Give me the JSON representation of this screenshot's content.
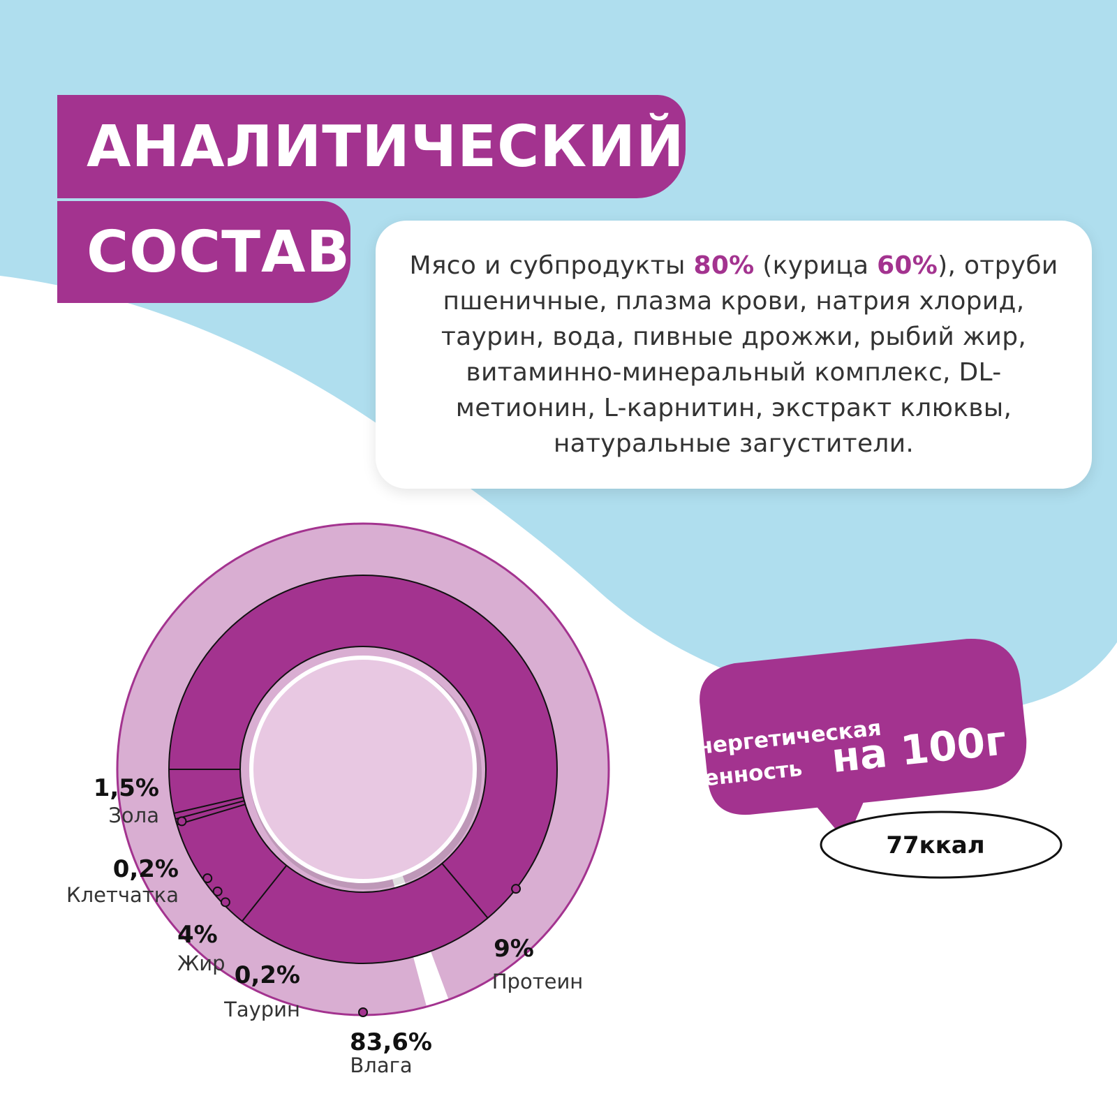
{
  "title": {
    "line1": "АНАЛИТИЧЕСКИЙ",
    "line2": "СОСТАВ"
  },
  "composition": {
    "part1": "Мясо и субпродукты ",
    "meat_pct": "80%",
    "part2": " (курица ",
    "chicken_pct": "60%",
    "part3": "), отруби пшеничные, плазма крови, натрия хлорид, таурин, вода, пивные дрожжи, рыбий жир, витаминно-минеральный комплекс, DL-метионин, L-карнитин, экстракт клюквы, натуральные загустители."
  },
  "energy": {
    "label_line1": "Энергетическая",
    "label_line2": "ценность",
    "label_emph": "на 100г",
    "value": "77ккал"
  },
  "colors": {
    "accent": "#a3338f",
    "light_accent": "#d9aed2",
    "sky": "#afdeee",
    "inner_fill": "#e8c8e2"
  },
  "chart_data": {
    "type": "pie",
    "unit": "%",
    "series": [
      {
        "name": "Влага",
        "value": 83.6,
        "label": "83,6%"
      },
      {
        "name": "Протеин",
        "value": 9,
        "label": "9%"
      },
      {
        "name": "Жир",
        "value": 4,
        "label": "4%"
      },
      {
        "name": "Таурин",
        "value": 0.2,
        "label": "0,2%"
      },
      {
        "name": "Клетчатка",
        "value": 0.2,
        "label": "0,2%"
      },
      {
        "name": "Зола",
        "value": 1.5,
        "label": "1,5%"
      }
    ]
  }
}
